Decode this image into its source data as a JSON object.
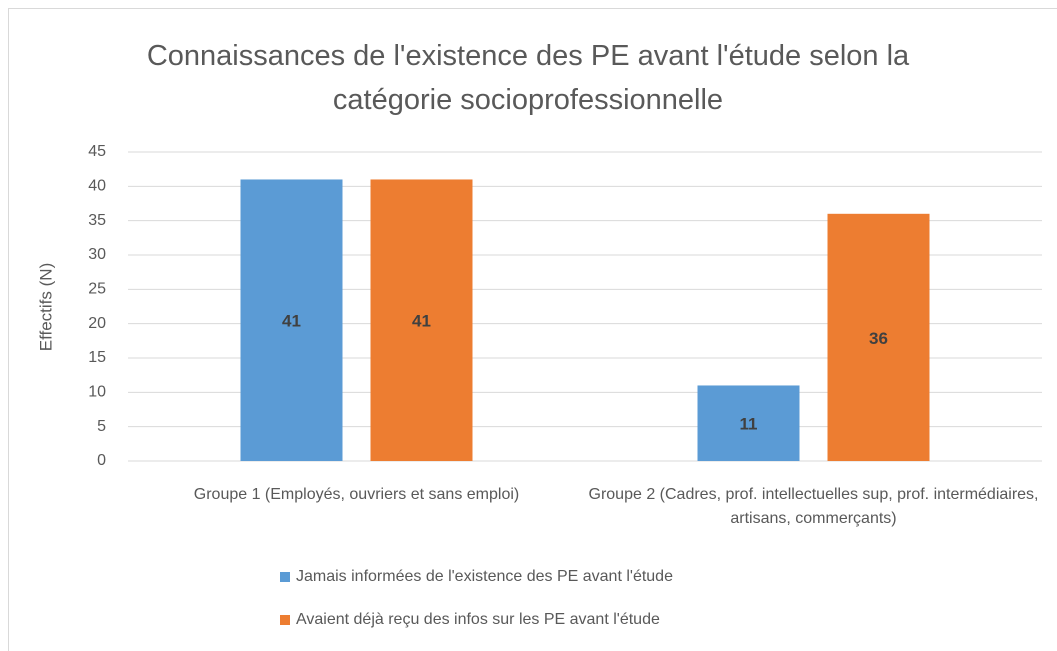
{
  "chart_data": {
    "type": "bar",
    "title": "Connaissances de l'existence des PE avant l'étude selon la catégorie socioprofessionnelle",
    "y_label": "Effectifs (N)",
    "categories": [
      "Groupe 1 (Employés, ouvriers et sans emploi)",
      "Groupe 2 (Cadres, prof. intellectuelles sup, prof. intermédiaires, artisans, commerçants)"
    ],
    "series": [
      {
        "name": "Jamais informées de l'existence des PE avant l'étude",
        "color": "#5b9bd5",
        "values": [
          41,
          11
        ]
      },
      {
        "name": "Avaient déjà reçu des infos sur les PE avant l'étude",
        "color": "#ed7d31",
        "values": [
          41,
          36
        ]
      }
    ],
    "ylim": [
      0,
      45
    ],
    "yticks": [
      0,
      5,
      10,
      15,
      20,
      25,
      30,
      35,
      40,
      45
    ],
    "grid": true,
    "legend": "bottom"
  }
}
